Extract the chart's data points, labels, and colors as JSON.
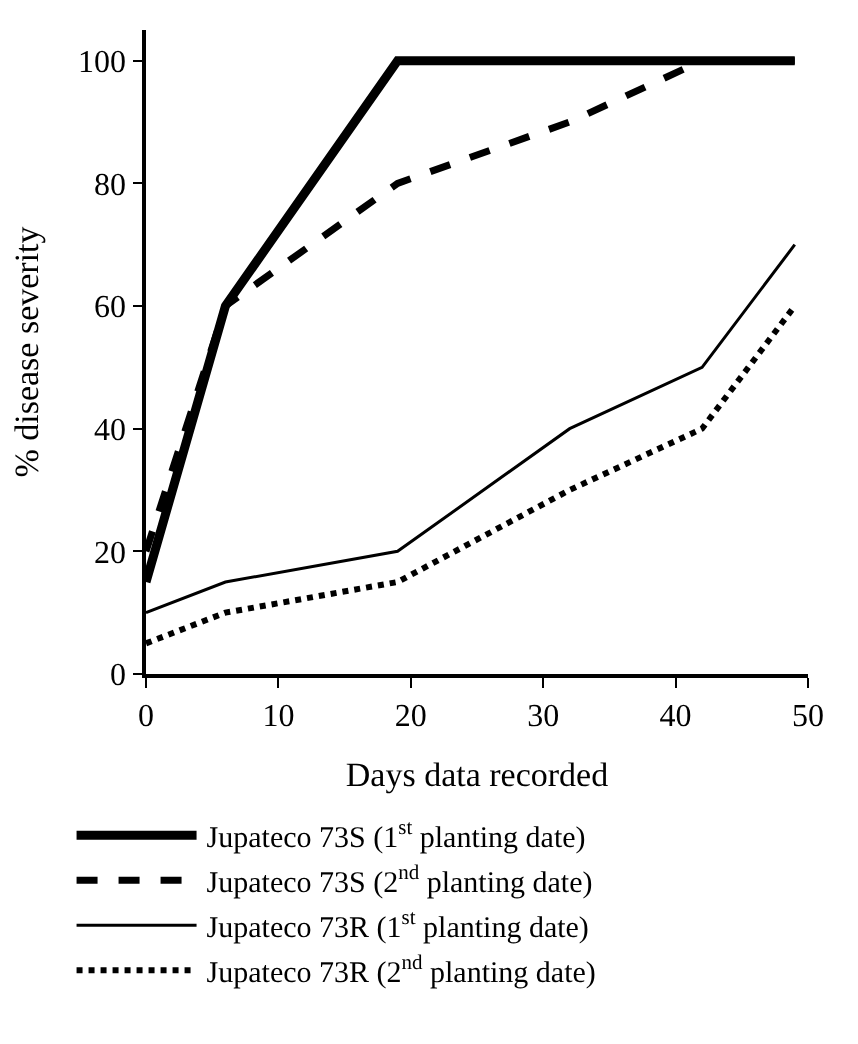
{
  "chart_data": {
    "type": "line",
    "xlabel": "Days data recorded",
    "ylabel": "% disease severity",
    "x": [
      0,
      6,
      19,
      32,
      42,
      49
    ],
    "xlim": [
      0,
      50
    ],
    "xticks": [
      0,
      10,
      20,
      30,
      40,
      50
    ],
    "ylim": [
      0,
      105
    ],
    "yticks": [
      0,
      20,
      40,
      60,
      80,
      100
    ],
    "legend": "bottom",
    "marker": "none",
    "series": [
      {
        "name": "Jupateco 73S (1$^{st}$ planting date)",
        "color": "#000000",
        "line_style": "solid",
        "values": [
          15,
          60,
          100,
          100,
          100,
          100
        ]
      },
      {
        "name": "Jupateco 73S (2$^{nd}$ planting date)",
        "color": "#000000",
        "line_style": "dashed",
        "values": [
          20,
          60,
          80,
          90,
          100,
          100
        ]
      },
      {
        "name": "Jupateco 73R (1$^{st}$ planting date)",
        "color": "#000000",
        "line_style": "solid",
        "values": [
          10,
          15,
          20,
          40,
          50,
          70
        ]
      },
      {
        "name": "Jupateco 73R (2$^{nd}$ planting date)",
        "color": "#000000",
        "line_style": "dotted",
        "values": [
          5,
          10,
          15,
          30,
          40,
          60
        ]
      }
    ]
  }
}
